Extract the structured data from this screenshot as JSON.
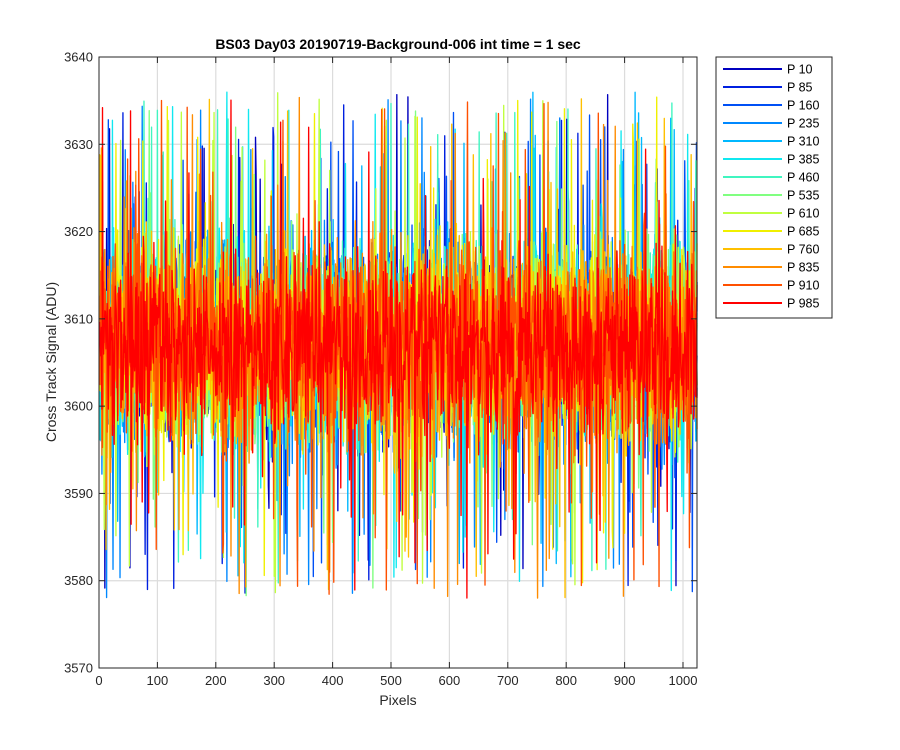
{
  "chart_data": {
    "type": "line",
    "title": "BS03 Day03 20190719-Background-006 int time = 1 sec",
    "xlabel": "Pixels",
    "ylabel": "Cross Track Signal (ADU)",
    "xlim": [
      0,
      1024
    ],
    "ylim": [
      3570,
      3640
    ],
    "xticks": [
      0,
      100,
      200,
      300,
      400,
      500,
      600,
      700,
      800,
      900,
      1000
    ],
    "yticks": [
      3570,
      3580,
      3590,
      3600,
      3610,
      3620,
      3630,
      3640
    ],
    "grid": true,
    "legend_location": "outside-top-right",
    "noise_model": {
      "baseline": 3607,
      "typical_range": [
        3590,
        3625
      ],
      "extreme_min": 3575,
      "extreme_max": 3637,
      "points_per_series": 1024
    },
    "series": [
      {
        "name": "P 10",
        "color": "#0000bf"
      },
      {
        "name": "P 85",
        "color": "#0020e0"
      },
      {
        "name": "P 160",
        "color": "#0050f5"
      },
      {
        "name": "P 235",
        "color": "#0088ff"
      },
      {
        "name": "P 310",
        "color": "#00b8ff"
      },
      {
        "name": "P 385",
        "color": "#10e8f0"
      },
      {
        "name": "P 460",
        "color": "#40f5c0"
      },
      {
        "name": "P 535",
        "color": "#80ff80"
      },
      {
        "name": "P 610",
        "color": "#c0ff40"
      },
      {
        "name": "P 685",
        "color": "#f0f000"
      },
      {
        "name": "P 760",
        "color": "#ffc000"
      },
      {
        "name": "P 835",
        "color": "#ff8c00"
      },
      {
        "name": "P 910",
        "color": "#ff5000"
      },
      {
        "name": "P 985",
        "color": "#ff0000"
      }
    ]
  }
}
